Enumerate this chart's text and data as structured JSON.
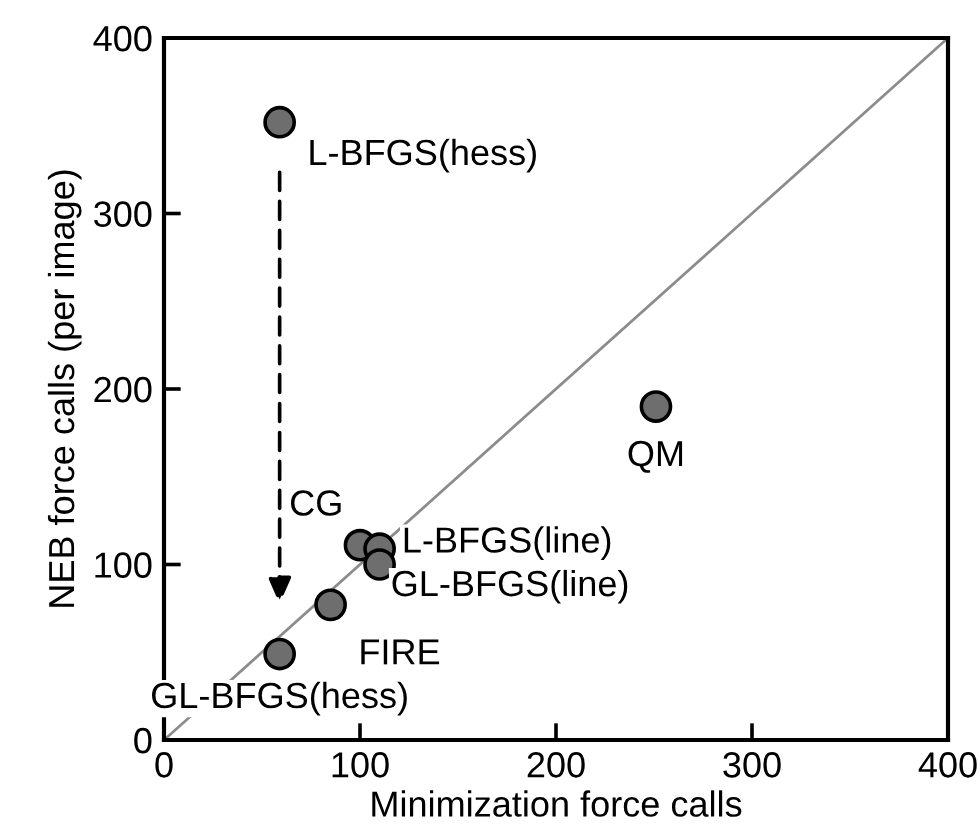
{
  "chart_data": {
    "type": "scatter",
    "xlabel": "Minimization force calls",
    "ylabel": "NEB force calls (per image)",
    "xlim": [
      0,
      400
    ],
    "ylim": [
      0,
      400
    ],
    "xticks": [
      0,
      100,
      200,
      300,
      400
    ],
    "yticks": [
      0,
      100,
      200,
      300,
      400
    ],
    "grid": false,
    "legend": false,
    "marker": "circle",
    "series": [
      {
        "type": "line",
        "color": "#8c8c8c",
        "x": [
          0,
          400
        ],
        "values": [
          0,
          400
        ],
        "marker": "none",
        "line_style": "solid"
      },
      {
        "color": "#6e6e6e",
        "x": [
          59,
          251,
          100,
          110,
          110,
          85,
          59
        ],
        "values": [
          352,
          190,
          111,
          109,
          100,
          77,
          49
        ]
      }
    ],
    "annotations": [
      {
        "text": "L-BFGS(hess)",
        "x": 59,
        "y": 352
      },
      {
        "text": "QM",
        "x": 251,
        "y": 190
      },
      {
        "text": "CG",
        "x": 100,
        "y": 111
      },
      {
        "text": "L-BFGS(line)",
        "x": 110,
        "y": 109
      },
      {
        "text": "GL-BFGS(line)",
        "x": 110,
        "y": 100
      },
      {
        "text": "FIRE",
        "x": 85,
        "y": 77
      },
      {
        "text": "GL-BFGS(hess)",
        "x": 59,
        "y": 49
      }
    ]
  }
}
